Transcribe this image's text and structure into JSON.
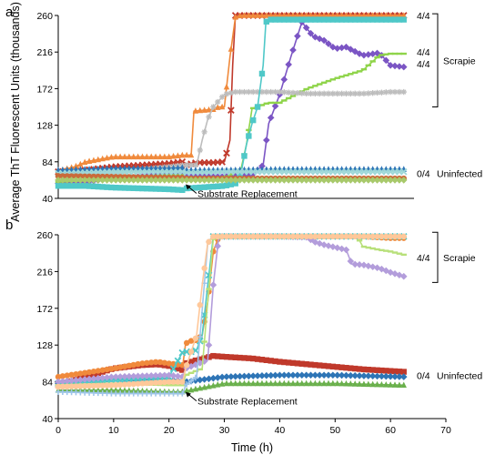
{
  "chart_data": [
    {
      "panel_label": "a",
      "type": "line",
      "ylabel": "Average ThT Fluorescent Units (thousands)",
      "xlabel": "",
      "xlim": [
        0,
        70
      ],
      "ylim": [
        40,
        260
      ],
      "y_ticks": [
        40,
        84,
        128,
        172,
        216,
        260
      ],
      "x_ticks": [],
      "grid": false,
      "legend": "none",
      "annotations": {
        "arrow_label": "Substrate Replacement",
        "arrow_at": [
          23,
          57
        ],
        "count_labels": [
          {
            "text": "4/4",
            "y": 260
          },
          {
            "text": "4/4",
            "y": 216
          },
          {
            "text": "4/4",
            "y": 202
          },
          {
            "text": "0/4",
            "y": 70
          }
        ],
        "group_labels": [
          {
            "text": "Scrapie",
            "y_from": 150,
            "y_to": 262
          },
          {
            "text": "Uninfected",
            "y": 70
          }
        ]
      },
      "series": [
        {
          "color": "#c0392b",
          "marker": "x",
          "x": [
            0,
            5,
            10,
            15,
            20,
            22.5,
            23,
            25,
            28,
            30,
            31,
            31.5,
            32,
            33,
            35,
            40,
            45,
            50,
            55,
            60,
            62.5
          ],
          "y": [
            72,
            74,
            78,
            80,
            82,
            84,
            80,
            83,
            83,
            84,
            110,
            200,
            260,
            260,
            260,
            260,
            260,
            260,
            260,
            260,
            260
          ]
        },
        {
          "color": "#f08a3c",
          "marker": "triangle",
          "x": [
            0,
            3,
            5,
            10,
            15,
            20,
            22.5,
            23,
            24,
            24.5,
            28,
            29,
            30,
            31,
            32,
            33,
            35,
            40,
            45,
            50,
            55,
            60,
            62.5
          ],
          "y": [
            73,
            78,
            84,
            90,
            90,
            90,
            92,
            92,
            92,
            145,
            147,
            150,
            150,
            210,
            258,
            260,
            260,
            260,
            260,
            260,
            260,
            260,
            260
          ]
        },
        {
          "color": "#7b55c4",
          "marker": "diamond",
          "x": [
            0,
            5,
            10,
            15,
            20,
            22.5,
            23,
            30,
            35,
            37,
            38,
            40,
            42,
            44,
            46,
            48,
            50,
            52,
            55,
            58,
            60,
            62.5
          ],
          "y": [
            58,
            60,
            64,
            66,
            68,
            70,
            66,
            66,
            68,
            80,
            130,
            165,
            210,
            252,
            235,
            230,
            220,
            222,
            212,
            215,
            200,
            198
          ]
        },
        {
          "color": "#8fd44a",
          "marker": "dash",
          "x": [
            0,
            5,
            10,
            15,
            20,
            22.5,
            23,
            30,
            33,
            34,
            35,
            38,
            40,
            45,
            50,
            55,
            58,
            60,
            62.5
          ],
          "y": [
            60,
            62,
            65,
            67,
            68,
            68,
            65,
            65,
            75,
            105,
            148,
            155,
            155,
            172,
            184,
            194,
            212,
            214,
            214
          ]
        },
        {
          "color": "#bdbdbd",
          "marker": "star",
          "x": [
            0,
            5,
            10,
            15,
            20,
            22.5,
            23,
            25,
            26,
            27,
            28,
            30,
            32,
            35,
            40,
            45,
            50,
            55,
            60,
            62.5
          ],
          "y": [
            65,
            68,
            72,
            75,
            78,
            80,
            80,
            80,
            110,
            135,
            150,
            165,
            168,
            168,
            168,
            166,
            166,
            166,
            168,
            168
          ]
        },
        {
          "color": "#4fc8c8",
          "marker": "square",
          "x": [
            0,
            5,
            10,
            15,
            20,
            22.5,
            23,
            30,
            32,
            33,
            34,
            35,
            36,
            37,
            37.5,
            38,
            40,
            45,
            50,
            55,
            60,
            62.5
          ],
          "y": [
            55,
            55,
            53,
            52,
            51,
            50,
            52,
            55,
            58,
            70,
            105,
            130,
            150,
            200,
            252,
            255,
            255,
            255,
            255,
            255,
            255,
            255
          ]
        },
        {
          "color": "#2e75b6",
          "marker": "triangle",
          "x": [
            0,
            10,
            20,
            22.5,
            23,
            30,
            40,
            50,
            62.5
          ],
          "y": [
            74,
            76,
            76,
            77,
            74,
            74,
            75,
            75,
            75
          ]
        },
        {
          "color": "#9fd8d8",
          "marker": "x",
          "x": [
            0,
            10,
            20,
            22.5,
            23,
            30,
            40,
            50,
            62.5
          ],
          "y": [
            70,
            72,
            72,
            72,
            71,
            72,
            72,
            72,
            72
          ]
        },
        {
          "color": "#c96b3a",
          "marker": "circle",
          "x": [
            0,
            10,
            20,
            22.5,
            23,
            30,
            40,
            50,
            62.5
          ],
          "y": [
            67,
            66,
            65,
            65,
            64,
            64,
            64,
            64,
            64
          ]
        },
        {
          "color": "#a8c96b",
          "marker": "diamond",
          "x": [
            0,
            10,
            20,
            22.5,
            23,
            30,
            40,
            50,
            62.5
          ],
          "y": [
            62,
            62,
            62,
            62,
            62,
            62,
            62,
            62,
            62
          ]
        }
      ]
    },
    {
      "panel_label": "b",
      "type": "line",
      "ylabel": "",
      "xlabel": "Time (h)",
      "xlim": [
        0,
        70
      ],
      "ylim": [
        40,
        260
      ],
      "y_ticks": [
        40,
        84,
        128,
        172,
        216,
        260
      ],
      "x_ticks": [
        0,
        10,
        20,
        30,
        40,
        50,
        60,
        70
      ],
      "grid": false,
      "legend": "none",
      "annotations": {
        "arrow_label": "Substrate Replacement",
        "arrow_at": [
          23,
          72
        ],
        "count_labels": [
          {
            "text": "4/4",
            "y": 233
          },
          {
            "text": "0/4",
            "y": 92
          }
        ],
        "group_labels": [
          {
            "text": "Scrapie",
            "y_from": 203,
            "y_to": 263
          },
          {
            "text": "Uninfected",
            "y": 92
          }
        ]
      },
      "series": [
        {
          "color": "#c0392b",
          "marker": "square",
          "x": [
            0,
            5,
            10,
            15,
            18,
            20,
            22.5,
            23,
            25,
            28,
            30,
            35,
            40,
            45,
            50,
            55,
            60,
            62.5
          ],
          "y": [
            80,
            90,
            100,
            104,
            105,
            103,
            98,
            106,
            110,
            115,
            114,
            112,
            108,
            105,
            102,
            99,
            97,
            96
          ]
        },
        {
          "color": "#f08a3c",
          "marker": "circle",
          "x": [
            0,
            5,
            10,
            15,
            18,
            20,
            22.5,
            23,
            24,
            25,
            26,
            27,
            28,
            29,
            30,
            35,
            40,
            45,
            50,
            55,
            60,
            62.5
          ],
          "y": [
            90,
            95,
            100,
            106,
            108,
            106,
            104,
            130,
            133,
            134,
            140,
            180,
            240,
            258,
            258,
            258,
            258,
            258,
            258,
            258,
            256,
            256
          ]
        },
        {
          "color": "#2e75b6",
          "marker": "diamond",
          "x": [
            0,
            10,
            20,
            22.5,
            23,
            30,
            40,
            50,
            62.5
          ],
          "y": [
            82,
            88,
            86,
            85,
            84,
            90,
            92,
            92,
            90
          ]
        },
        {
          "color": "#6ab04c",
          "marker": "triangle",
          "x": [
            0,
            10,
            20,
            22.5,
            23,
            30,
            40,
            50,
            62.5
          ],
          "y": [
            74,
            74,
            72,
            72,
            73,
            82,
            82,
            82,
            80
          ]
        },
        {
          "color": "#4fc8c8",
          "marker": "x",
          "x": [
            0,
            10,
            20,
            22.5,
            23,
            24,
            25,
            26,
            27,
            28,
            29,
            30,
            35,
            40,
            45,
            50,
            55,
            60,
            62.5
          ],
          "y": [
            82,
            86,
            90,
            120,
            120,
            120,
            122,
            140,
            200,
            258,
            258,
            258,
            258,
            258,
            258,
            258,
            258,
            258,
            258
          ]
        },
        {
          "color": "#b39ddb",
          "marker": "diamond",
          "x": [
            0,
            10,
            20,
            22.5,
            23,
            25,
            27,
            28,
            29,
            30,
            35,
            40,
            45,
            46,
            48,
            50,
            52,
            53,
            55,
            58,
            60,
            62.5
          ],
          "y": [
            84,
            90,
            92,
            90,
            100,
            105,
            110,
            200,
            258,
            258,
            258,
            258,
            257,
            252,
            248,
            245,
            242,
            225,
            224,
            220,
            215,
            210
          ]
        },
        {
          "color": "#b8e07a",
          "marker": "dash",
          "x": [
            0,
            10,
            20,
            22.5,
            23,
            26,
            27,
            28,
            30,
            35,
            40,
            45,
            50,
            54,
            55,
            58,
            60,
            62.5
          ],
          "y": [
            80,
            82,
            80,
            80,
            92,
            100,
            180,
            255,
            258,
            258,
            258,
            258,
            258,
            258,
            246,
            242,
            240,
            236
          ]
        },
        {
          "color": "#9ec5ea",
          "marker": "plus",
          "x": [
            0,
            10,
            20,
            22.5,
            23,
            25,
            26,
            27,
            28,
            30,
            35,
            40,
            50,
            62.5
          ],
          "y": [
            72,
            70,
            70,
            70,
            80,
            90,
            170,
            250,
            258,
            258,
            258,
            258,
            258,
            258
          ]
        },
        {
          "color": "#ffc89a",
          "marker": "circle",
          "x": [
            0,
            10,
            20,
            22.5,
            23,
            24,
            25,
            26,
            27,
            28,
            30,
            40,
            50,
            60,
            62.5
          ],
          "y": [
            78,
            80,
            84,
            84,
            100,
            120,
            140,
            200,
            250,
            258,
            258,
            258,
            258,
            258,
            258
          ]
        }
      ]
    }
  ]
}
